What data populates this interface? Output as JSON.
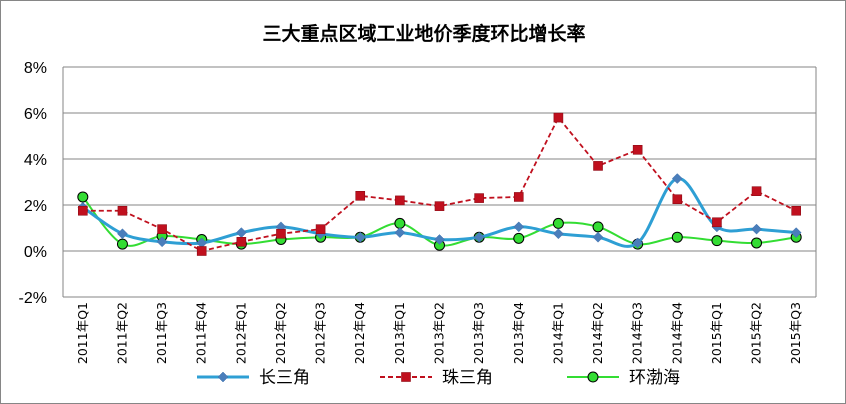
{
  "chart_data": {
    "type": "line",
    "title": "三大重点区域工业地价季度环比增长率",
    "categories": [
      "2011年Q1",
      "2011年Q2",
      "2011年Q3",
      "2011年Q4",
      "2012年Q1",
      "2012年Q2",
      "2012年Q3",
      "2012年Q4",
      "2013年Q1",
      "2013年Q2",
      "2013年Q3",
      "2013年Q4",
      "2014年Q1",
      "2014年Q2",
      "2014年Q3",
      "2014年Q4",
      "2015年Q1",
      "2015年Q2",
      "2015年Q3"
    ],
    "ylim": [
      -2,
      8
    ],
    "yticks": [
      "-2%",
      "0%",
      "2%",
      "4%",
      "6%",
      "8%"
    ],
    "ytick_values": [
      -2,
      0,
      2,
      4,
      6,
      8
    ],
    "grid": true,
    "legend_position": "bottom",
    "series": [
      {
        "name": "长三角",
        "color": "#2E9FD4",
        "marker": "diamond",
        "line": "smooth-solid",
        "values": [
          1.9,
          0.75,
          0.4,
          0.35,
          0.8,
          1.05,
          0.75,
          0.6,
          0.8,
          0.5,
          0.6,
          1.05,
          0.75,
          0.6,
          0.35,
          3.15,
          1.05,
          0.95,
          0.8
        ]
      },
      {
        "name": "珠三角",
        "color": "#C0101E",
        "marker": "square",
        "line": "dashed",
        "values": [
          1.75,
          1.75,
          0.95,
          0.0,
          0.4,
          0.75,
          0.95,
          2.4,
          2.2,
          1.95,
          2.3,
          2.35,
          5.8,
          3.7,
          4.4,
          2.25,
          1.25,
          2.6,
          1.75
        ]
      },
      {
        "name": "环渤海",
        "color": "#33DD33",
        "marker": "circle",
        "line": "smooth-solid",
        "values": [
          2.35,
          0.3,
          0.65,
          0.5,
          0.3,
          0.5,
          0.6,
          0.6,
          1.2,
          0.25,
          0.6,
          0.55,
          1.2,
          1.05,
          0.3,
          0.6,
          0.45,
          0.35,
          0.6
        ]
      }
    ]
  }
}
